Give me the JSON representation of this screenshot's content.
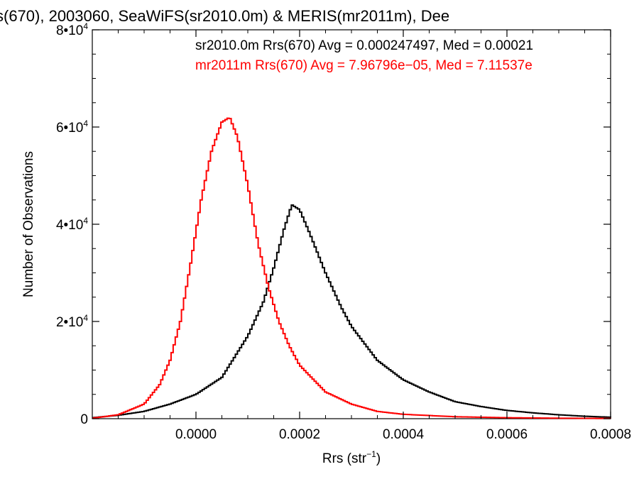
{
  "chart_data": {
    "type": "line",
    "title": "s(670), 2003060, SeaWiFS(sr2010.0m) & MERIS(mr2011m), Dee",
    "xlabel_base": "Rrs (str",
    "xlabel_sup": "−1",
    "xlabel_end": ")",
    "ylabel": "Number of Observations",
    "xlim": [
      -0.0002,
      0.0008
    ],
    "ylim": [
      0,
      80000
    ],
    "grid": false,
    "legend_placement": "top-right",
    "x_ticks": [
      {
        "value": 0.0,
        "label": "0.0000"
      },
      {
        "value": 0.0002,
        "label": "0.0002"
      },
      {
        "value": 0.0004,
        "label": "0.0004"
      },
      {
        "value": 0.0006,
        "label": "0.0006"
      },
      {
        "value": 0.0008,
        "label": "0.0008"
      }
    ],
    "y_ticks": [
      {
        "value": 0,
        "label": "0",
        "sup": ""
      },
      {
        "value": 20000,
        "label": "2•10",
        "sup": "4"
      },
      {
        "value": 40000,
        "label": "4•10",
        "sup": "4"
      },
      {
        "value": 60000,
        "label": "6•10",
        "sup": "4"
      },
      {
        "value": 80000,
        "label": "8•10",
        "sup": "4"
      }
    ],
    "series": [
      {
        "name": "sr2010.0m Rrs(670) Avg = 0.000247497, Med = 0.00021",
        "color": "#000000",
        "peak_x": 0.000185,
        "peak_y": 44000,
        "points": [
          [
            -0.0002,
            200
          ],
          [
            -0.00015,
            700
          ],
          [
            -0.0001,
            1500
          ],
          [
            -5e-05,
            3000
          ],
          [
            0.0,
            5000
          ],
          [
            5e-05,
            8500
          ],
          [
            0.0001,
            17000
          ],
          [
            0.00013,
            24000
          ],
          [
            0.00015,
            31000
          ],
          [
            0.00017,
            39000
          ],
          [
            0.000185,
            44000
          ],
          [
            0.0002,
            43000
          ],
          [
            0.00022,
            38000
          ],
          [
            0.00025,
            30000
          ],
          [
            0.00028,
            23000
          ],
          [
            0.0003,
            19000
          ],
          [
            0.00035,
            12000
          ],
          [
            0.0004,
            8000
          ],
          [
            0.00045,
            5500
          ],
          [
            0.0005,
            3500
          ],
          [
            0.00055,
            2500
          ],
          [
            0.0006,
            1700
          ],
          [
            0.00065,
            1200
          ],
          [
            0.0007,
            800
          ],
          [
            0.00075,
            500
          ],
          [
            0.0008,
            300
          ]
        ]
      },
      {
        "name": "mr2011m Rrs(670) Avg = 7.96796e−05, Med = 7.11537e",
        "color": "#ff0000",
        "peak_x": 6.5e-05,
        "peak_y": 62000,
        "points": [
          [
            -0.0002,
            100
          ],
          [
            -0.00015,
            800
          ],
          [
            -0.0001,
            3000
          ],
          [
            -7e-05,
            7000
          ],
          [
            -5e-05,
            12000
          ],
          [
            -3e-05,
            20000
          ],
          [
            -1e-05,
            32000
          ],
          [
            1e-05,
            45000
          ],
          [
            3e-05,
            55000
          ],
          [
            5e-05,
            61000
          ],
          [
            6.5e-05,
            62000
          ],
          [
            8e-05,
            58000
          ],
          [
            0.0001,
            48000
          ],
          [
            0.00012,
            36000
          ],
          [
            0.00014,
            27000
          ],
          [
            0.00016,
            20000
          ],
          [
            0.00018,
            15000
          ],
          [
            0.0002,
            11000
          ],
          [
            0.00025,
            5500
          ],
          [
            0.0003,
            3000
          ],
          [
            0.00035,
            1500
          ],
          [
            0.0004,
            900
          ],
          [
            0.0005,
            400
          ],
          [
            0.0006,
            200
          ],
          [
            0.0007,
            100
          ],
          [
            0.0008,
            50
          ]
        ]
      }
    ]
  }
}
